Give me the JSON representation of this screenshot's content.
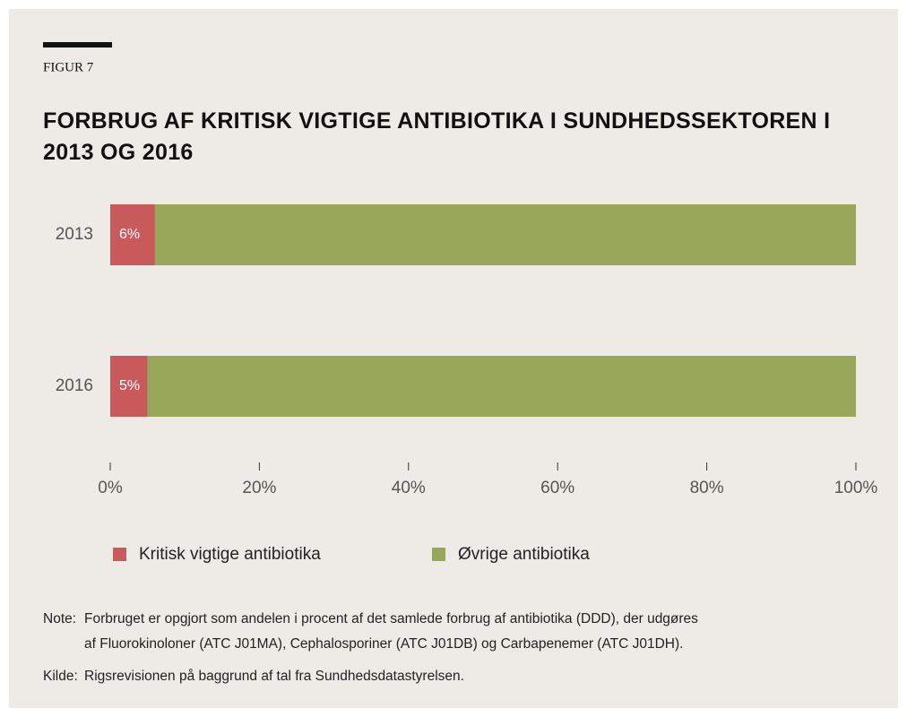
{
  "chart_data": {
    "type": "stacked_barh",
    "label": "FIGUR 7",
    "title": "FORBRUG AF KRITISK VIGTIGE ANTIBIOTIKA I SUNDHEDSSEKTOREN I 2013 OG 2016",
    "categories": [
      "2013",
      "2016"
    ],
    "series": [
      {
        "name": "Kritisk vigtige antibiotika",
        "color": "#c95a5c",
        "values": [
          6,
          5
        ],
        "value_labels": [
          "6%",
          "5%"
        ]
      },
      {
        "name": "Øvrige antibiotika",
        "color": "#98a75a",
        "values": [
          94,
          95
        ]
      }
    ],
    "xlim": [
      0,
      100
    ],
    "xticks": [
      {
        "value": 0,
        "label": "0%"
      },
      {
        "value": 20,
        "label": "20%"
      },
      {
        "value": 40,
        "label": "40%"
      },
      {
        "value": 60,
        "label": "60%"
      },
      {
        "value": 80,
        "label": "80%"
      },
      {
        "value": 100,
        "label": "100%"
      }
    ],
    "legend": "bottom"
  },
  "footer": {
    "note_label": "Note:",
    "note_lines": [
      "Forbruget er opgjort som andelen i procent af det samlede forbrug af antibiotika (DDD), der udgøres",
      "af Fluorokinoloner (ATC J01MA), Cephalosporiner (ATC J01DB) og Carbapenemer (ATC J01DH)."
    ],
    "source_label": "Kilde:",
    "source": "Rigsrevisionen på baggrund af tal fra Sundhedsdatastyrelsen."
  }
}
